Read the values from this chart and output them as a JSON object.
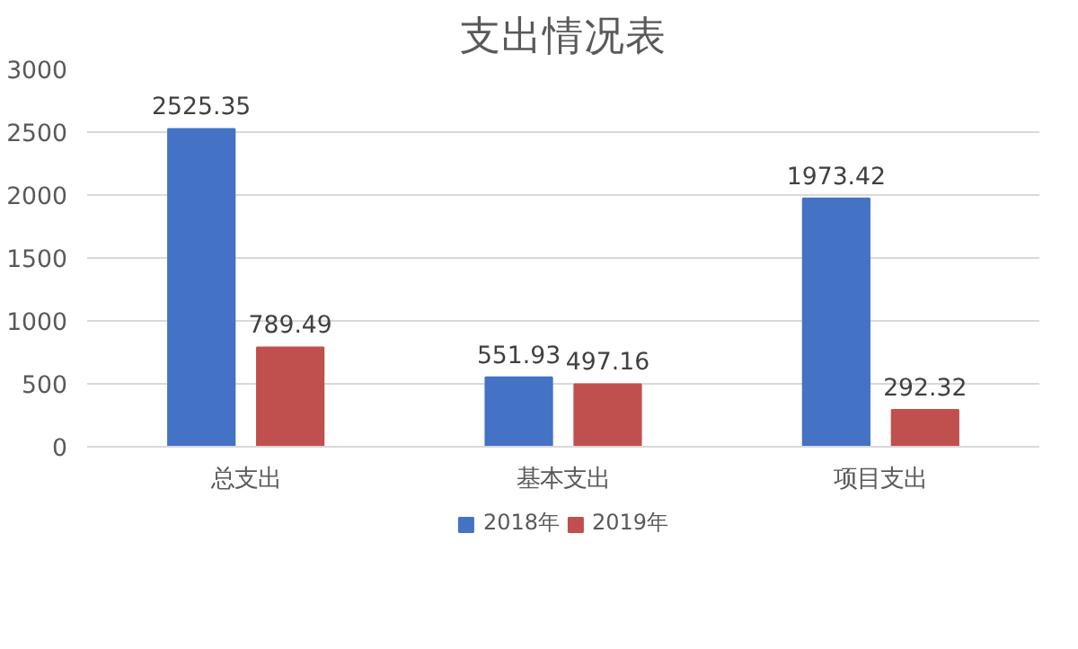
{
  "chart_data": {
    "type": "bar",
    "title": "支出情况表",
    "categories": [
      "总支出",
      "基本支出",
      "项目支出"
    ],
    "series": [
      {
        "name": "2018年",
        "color": "#4472c4",
        "values": [
          2525.35,
          551.93,
          1973.42
        ]
      },
      {
        "name": "2019年",
        "color": "#c0504d",
        "values": [
          789.49,
          497.16,
          292.32
        ]
      }
    ],
    "ylim": [
      0,
      3000
    ],
    "yticks": [
      0,
      500,
      1000,
      1500,
      2000,
      2500,
      3000
    ],
    "grid": "y",
    "legend": "bottom",
    "data_labels": true
  }
}
